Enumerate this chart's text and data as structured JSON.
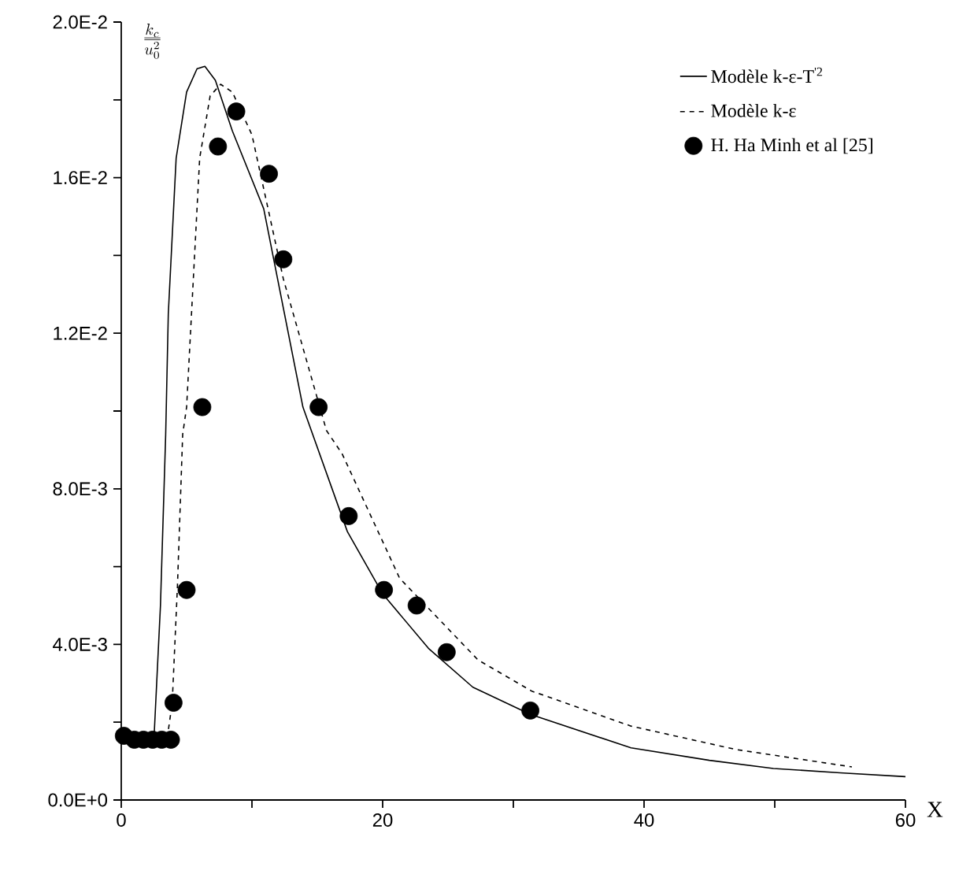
{
  "chart_data": {
    "type": "line",
    "xlabel": "X",
    "ylabel": "\\frac{k_c}{\\overline{u_0^{2}}}",
    "xlim": [
      0,
      60
    ],
    "ylim": [
      0,
      0.02
    ],
    "xticks": [
      0,
      {
        "value": 10,
        "label": null
      },
      20,
      {
        "value": 30,
        "label": null
      },
      40,
      {
        "value": 50,
        "label": null
      },
      60
    ],
    "yticks": [
      {
        "value": 0,
        "label": "0.0E+0"
      },
      {
        "value": 0.002,
        "label": null
      },
      {
        "value": 0.004,
        "label": "4.0E-3"
      },
      {
        "value": 0.006,
        "label": null
      },
      {
        "value": 0.008,
        "label": "8.0E-3"
      },
      {
        "value": 0.01,
        "label": null
      },
      {
        "value": 0.012,
        "label": "1.2E-2"
      },
      {
        "value": 0.014,
        "label": null
      },
      {
        "value": 0.016,
        "label": "1.6E-2"
      },
      {
        "value": 0.018,
        "label": null
      },
      {
        "value": 0.02,
        "label": "2.0E-2"
      }
    ],
    "grid": false,
    "legend": "top right",
    "series": [
      {
        "name": "Modèle k-ε-T$^{'2}$",
        "color": "#000000",
        "line_style": "solid",
        "marker": "none",
        "x": [
          0,
          2.5,
          3.0,
          3.4,
          3.6,
          4.2,
          5.0,
          5.8,
          6.4,
          7.2,
          8.5,
          10.9,
          13.9,
          17.3,
          20,
          23.5,
          26.9,
          31.3,
          39,
          45,
          49.9,
          55,
          60
        ],
        "values": [
          0.00155,
          0.00155,
          0.005,
          0.0094,
          0.0125,
          0.0165,
          0.0182,
          0.0188,
          0.01886,
          0.0185,
          0.0172,
          0.0152,
          0.0101,
          0.0069,
          0.0053,
          0.0039,
          0.0029,
          0.0022,
          0.00134,
          0.00102,
          0.00081,
          0.0007,
          0.0006
        ]
      },
      {
        "name": "Modèle k-ε",
        "color": "#000000",
        "line_style": "dashed",
        "marker": "none",
        "x": [
          0,
          3.5,
          3.9,
          4.3,
          4.7,
          5.0,
          6.0,
          6.8,
          7.6,
          8.5,
          10,
          12.4,
          15.7,
          16.9,
          21.3,
          27.3,
          31.4,
          39,
          47,
          55.9
        ],
        "values": [
          0.00155,
          0.00155,
          0.0025,
          0.0055,
          0.0094,
          0.0101,
          0.0165,
          0.0181,
          0.0184,
          0.0182,
          0.0171,
          0.0134,
          0.0095,
          0.0089,
          0.0057,
          0.0036,
          0.0028,
          0.0019,
          0.0013,
          0.00085
        ]
      },
      {
        "name": "H. Ha Minh et al [25]",
        "type": "scatter",
        "color": "#000000",
        "marker": "circle",
        "x": [
          0.2,
          1.0,
          1.7,
          2.4,
          3.1,
          3.8,
          4.0,
          5.0,
          6.2,
          7.4,
          8.8,
          11.3,
          12.4,
          15.1,
          17.4,
          20.1,
          22.6,
          24.9,
          31.3
        ],
        "values": [
          0.00165,
          0.00155,
          0.00155,
          0.00155,
          0.00155,
          0.00155,
          0.0025,
          0.0054,
          0.0101,
          0.0168,
          0.0177,
          0.0161,
          0.0139,
          0.0101,
          0.0073,
          0.0054,
          0.005,
          0.0038,
          0.0023
        ]
      }
    ]
  }
}
